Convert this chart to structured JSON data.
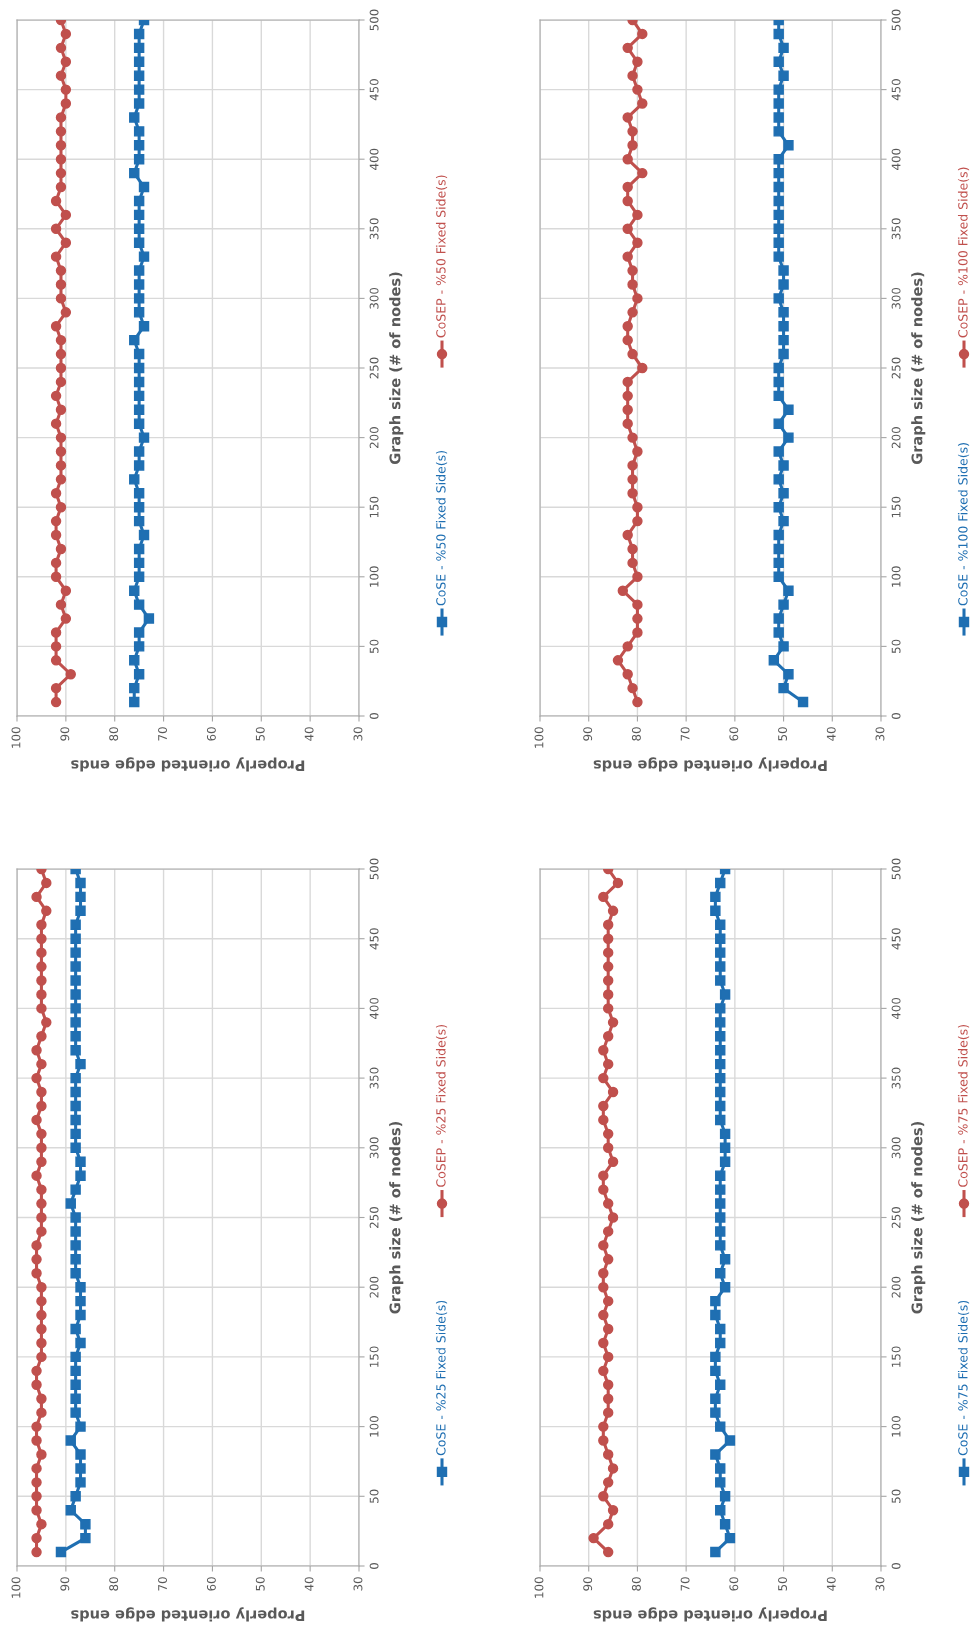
{
  "chart_data": [
    {
      "type": "line",
      "xlabel": "Properly oriented edge ends",
      "ylabel": "Graph size (# of nodes)",
      "xlim": [
        100,
        30
      ],
      "xticks": [
        100,
        90,
        80,
        70,
        60,
        50,
        40,
        30
      ],
      "ylim": [
        0,
        500
      ],
      "yticks": [
        0,
        50,
        100,
        150,
        200,
        250,
        300,
        350,
        400,
        450,
        500
      ],
      "grid": true,
      "legend": "right",
      "series": [
        {
          "name": "CoSE - %50 Fixed Side(s)",
          "color": "#1f6fb2",
          "marker": "square",
          "x": [
            76,
            76,
            75,
            76,
            75,
            75,
            73,
            75,
            76,
            75,
            75,
            75,
            74,
            75,
            75,
            75,
            76,
            75,
            75,
            74,
            75,
            75,
            75,
            75,
            75,
            75,
            76,
            74,
            75,
            75,
            75,
            75,
            74,
            75,
            75,
            75,
            75,
            74,
            76,
            75,
            75,
            75,
            76,
            75,
            75,
            75,
            75,
            75,
            75,
            74
          ],
          "values": [
            10,
            20,
            30,
            40,
            50,
            60,
            70,
            80,
            90,
            100,
            110,
            120,
            130,
            140,
            150,
            160,
            170,
            180,
            190,
            200,
            210,
            220,
            230,
            240,
            250,
            260,
            270,
            280,
            290,
            300,
            310,
            320,
            330,
            340,
            350,
            360,
            370,
            380,
            390,
            400,
            410,
            420,
            430,
            440,
            450,
            460,
            470,
            480,
            490,
            500
          ]
        },
        {
          "name": "CoSEP - %50 Fixed Side(s)",
          "color": "#c0504d",
          "marker": "circle",
          "x": [
            92,
            92,
            89,
            92,
            92,
            92,
            90,
            91,
            90,
            92,
            92,
            91,
            92,
            92,
            91,
            92,
            91,
            91,
            91,
            91,
            92,
            91,
            92,
            91,
            91,
            91,
            91,
            92,
            90,
            91,
            91,
            91,
            92,
            90,
            92,
            90,
            92,
            91,
            91,
            91,
            91,
            91,
            91,
            90,
            90,
            91,
            90,
            91,
            90,
            91
          ],
          "values": [
            10,
            20,
            30,
            40,
            50,
            60,
            70,
            80,
            90,
            100,
            110,
            120,
            130,
            140,
            150,
            160,
            170,
            180,
            190,
            200,
            210,
            220,
            230,
            240,
            250,
            260,
            270,
            280,
            290,
            300,
            310,
            320,
            330,
            340,
            350,
            360,
            370,
            380,
            390,
            400,
            410,
            420,
            430,
            440,
            450,
            460,
            470,
            480,
            490,
            500
          ]
        }
      ]
    },
    {
      "type": "line",
      "xlabel": "Properly oriented edge ends",
      "ylabel": "Graph size (# of nodes)",
      "xlim": [
        100,
        30
      ],
      "xticks": [
        100,
        90,
        80,
        70,
        60,
        50,
        40,
        30
      ],
      "ylim": [
        0,
        500
      ],
      "yticks": [
        0,
        50,
        100,
        150,
        200,
        250,
        300,
        350,
        400,
        450,
        500
      ],
      "grid": true,
      "legend": "right",
      "series": [
        {
          "name": "CoSE - %100 Fixed Side(s)",
          "color": "#1f6fb2",
          "marker": "square",
          "x": [
            46,
            50,
            49,
            52,
            50,
            51,
            51,
            50,
            49,
            51,
            51,
            51,
            51,
            50,
            51,
            50,
            51,
            50,
            51,
            49,
            51,
            49,
            51,
            51,
            51,
            50,
            50,
            50,
            50,
            51,
            50,
            50,
            51,
            51,
            51,
            51,
            51,
            51,
            51,
            51,
            49,
            51,
            51,
            51,
            51,
            50,
            51,
            50,
            51,
            51
          ],
          "values": [
            10,
            20,
            30,
            40,
            50,
            60,
            70,
            80,
            90,
            100,
            110,
            120,
            130,
            140,
            150,
            160,
            170,
            180,
            190,
            200,
            210,
            220,
            230,
            240,
            250,
            260,
            270,
            280,
            290,
            300,
            310,
            320,
            330,
            340,
            350,
            360,
            370,
            380,
            390,
            400,
            410,
            420,
            430,
            440,
            450,
            460,
            470,
            480,
            490,
            500
          ]
        },
        {
          "name": "CoSEP - %100 Fixed Side(s)",
          "color": "#c0504d",
          "marker": "circle",
          "x": [
            80,
            81,
            82,
            84,
            82,
            80,
            80,
            80,
            83,
            80,
            81,
            81,
            82,
            80,
            80,
            81,
            81,
            81,
            80,
            81,
            82,
            82,
            82,
            82,
            79,
            81,
            82,
            82,
            81,
            80,
            81,
            81,
            82,
            80,
            82,
            80,
            82,
            82,
            79,
            82,
            81,
            81,
            82,
            79,
            80,
            81,
            80,
            82,
            79,
            81
          ],
          "values": [
            10,
            20,
            30,
            40,
            50,
            60,
            70,
            80,
            90,
            100,
            110,
            120,
            130,
            140,
            150,
            160,
            170,
            180,
            190,
            200,
            210,
            220,
            230,
            240,
            250,
            260,
            270,
            280,
            290,
            300,
            310,
            320,
            330,
            340,
            350,
            360,
            370,
            380,
            390,
            400,
            410,
            420,
            430,
            440,
            450,
            460,
            470,
            480,
            490,
            500
          ]
        }
      ]
    },
    {
      "type": "line",
      "xlabel": "Properly oriented edge ends",
      "ylabel": "Graph size (# of nodes)",
      "xlim": [
        100,
        30
      ],
      "xticks": [
        100,
        90,
        80,
        70,
        60,
        50,
        40,
        30
      ],
      "ylim": [
        0,
        500
      ],
      "yticks": [
        0,
        50,
        100,
        150,
        200,
        250,
        300,
        350,
        400,
        450,
        500
      ],
      "grid": true,
      "legend": "right",
      "series": [
        {
          "name": "CoSE - %25 Fixed Side(s)",
          "color": "#1f6fb2",
          "marker": "square",
          "x": [
            91,
            86,
            86,
            89,
            88,
            87,
            87,
            87,
            89,
            87,
            88,
            88,
            88,
            88,
            88,
            87,
            88,
            87,
            87,
            87,
            88,
            88,
            88,
            88,
            88,
            89,
            88,
            87,
            87,
            88,
            88,
            88,
            88,
            88,
            88,
            87,
            88,
            88,
            88,
            88,
            88,
            88,
            88,
            88,
            88,
            88,
            87,
            87,
            87,
            88
          ],
          "values": [
            10,
            20,
            30,
            40,
            50,
            60,
            70,
            80,
            90,
            100,
            110,
            120,
            130,
            140,
            150,
            160,
            170,
            180,
            190,
            200,
            210,
            220,
            230,
            240,
            250,
            260,
            270,
            280,
            290,
            300,
            310,
            320,
            330,
            340,
            350,
            360,
            370,
            380,
            390,
            400,
            410,
            420,
            430,
            440,
            450,
            460,
            470,
            480,
            490,
            500
          ]
        },
        {
          "name": "CoSEP - %25 Fixed Side(s)",
          "color": "#c0504d",
          "marker": "circle",
          "x": [
            96,
            96,
            95,
            96,
            96,
            96,
            96,
            95,
            96,
            96,
            95,
            95,
            96,
            96,
            95,
            95,
            95,
            95,
            95,
            95,
            96,
            96,
            96,
            95,
            95,
            95,
            95,
            96,
            95,
            95,
            95,
            96,
            95,
            95,
            96,
            95,
            96,
            95,
            94,
            95,
            95,
            95,
            95,
            95,
            95,
            95,
            94,
            96,
            94,
            95
          ],
          "values": [
            10,
            20,
            30,
            40,
            50,
            60,
            70,
            80,
            90,
            100,
            110,
            120,
            130,
            140,
            150,
            160,
            170,
            180,
            190,
            200,
            210,
            220,
            230,
            240,
            250,
            260,
            270,
            280,
            290,
            300,
            310,
            320,
            330,
            340,
            350,
            360,
            370,
            380,
            390,
            400,
            410,
            420,
            430,
            440,
            450,
            460,
            470,
            480,
            490,
            500
          ]
        }
      ]
    },
    {
      "type": "line",
      "xlabel": "Properly oriented edge ends",
      "ylabel": "Graph size (# of nodes)",
      "xlim": [
        100,
        30
      ],
      "xticks": [
        100,
        90,
        80,
        70,
        60,
        50,
        40,
        30
      ],
      "ylim": [
        0,
        500
      ],
      "yticks": [
        0,
        50,
        100,
        150,
        200,
        250,
        300,
        350,
        400,
        450,
        500
      ],
      "grid": true,
      "legend": "right",
      "series": [
        {
          "name": "CoSE - %75 Fixed Side(s)",
          "color": "#1f6fb2",
          "marker": "square",
          "x": [
            64,
            61,
            62,
            63,
            62,
            63,
            63,
            64,
            61,
            63,
            64,
            64,
            63,
            64,
            64,
            63,
            63,
            64,
            64,
            62,
            63,
            62,
            63,
            63,
            63,
            63,
            63,
            63,
            62,
            62,
            62,
            63,
            63,
            63,
            63,
            63,
            63,
            63,
            63,
            63,
            62,
            63,
            63,
            63,
            63,
            63,
            64,
            64,
            63,
            62
          ],
          "values": [
            10,
            20,
            30,
            40,
            50,
            60,
            70,
            80,
            90,
            100,
            110,
            120,
            130,
            140,
            150,
            160,
            170,
            180,
            190,
            200,
            210,
            220,
            230,
            240,
            250,
            260,
            270,
            280,
            290,
            300,
            310,
            320,
            330,
            340,
            350,
            360,
            370,
            380,
            390,
            400,
            410,
            420,
            430,
            440,
            450,
            460,
            470,
            480,
            490,
            500
          ]
        },
        {
          "name": "CoSEP - %75 Fixed Side(s)",
          "color": "#c0504d",
          "marker": "circle",
          "x": [
            86,
            89,
            86,
            85,
            87,
            86,
            85,
            86,
            87,
            87,
            86,
            86,
            86,
            87,
            86,
            87,
            86,
            87,
            86,
            87,
            87,
            86,
            87,
            86,
            85,
            86,
            87,
            87,
            85,
            86,
            86,
            87,
            87,
            85,
            87,
            86,
            87,
            86,
            85,
            86,
            86,
            86,
            86,
            86,
            86,
            86,
            85,
            87,
            84,
            86
          ],
          "values": [
            10,
            20,
            30,
            40,
            50,
            60,
            70,
            80,
            90,
            100,
            110,
            120,
            130,
            140,
            150,
            160,
            170,
            180,
            190,
            200,
            210,
            220,
            230,
            240,
            250,
            260,
            270,
            280,
            290,
            300,
            310,
            320,
            330,
            340,
            350,
            360,
            370,
            380,
            390,
            400,
            410,
            420,
            430,
            440,
            450,
            460,
            470,
            480,
            490,
            500
          ]
        }
      ]
    }
  ]
}
